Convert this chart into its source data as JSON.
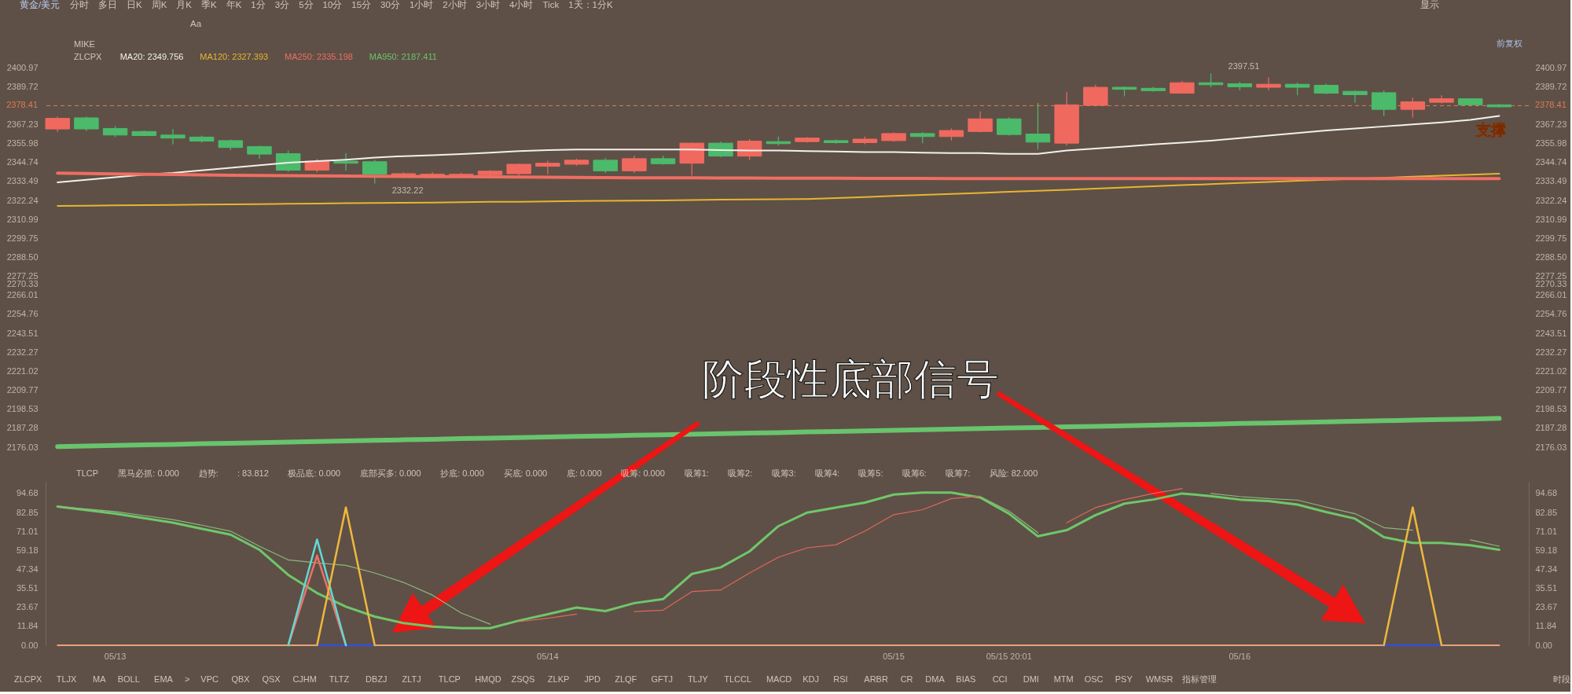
{
  "chart_data": [
    {
      "type": "other",
      "title": "黄金/美元",
      "annotations": [
        "分时　多日　日K　周K　月K　季K　年K　1分　3分　5分　10分　15分　30分　1小时　2小时　3小时　4小时　Tick　1天：1分K",
        "Aa",
        "显示"
      ]
    },
    {
      "type": "candlestick",
      "legend_title": "ZLCPX",
      "legend": "top left",
      "tick_labels": "y",
      "categories": [
        null,
        null,
        null,
        null,
        null,
        null,
        null,
        null,
        null,
        null,
        null,
        null,
        null,
        null,
        null,
        null,
        null,
        null,
        null,
        null,
        null,
        null,
        null,
        null,
        null,
        null,
        null,
        null,
        null,
        null,
        null,
        null,
        null,
        null,
        null,
        null,
        null,
        null,
        null,
        null,
        null,
        null,
        null,
        null,
        null,
        null,
        null,
        null,
        null,
        null,
        null
      ],
      "ohlc": [
        [
          2364.6,
          2372.0,
          2362.8,
          2370.9
        ],
        [
          2371.2,
          2372.0,
          2363.4,
          2364.6
        ],
        [
          2364.9,
          2366.4,
          2359.8,
          2361.0
        ],
        [
          2363.1,
          2363.7,
          2360.4,
          2360.7
        ],
        [
          2361.0,
          2364.6,
          2355.4,
          2359.2
        ],
        [
          2359.8,
          2360.7,
          2356.5,
          2357.4
        ],
        [
          2357.7,
          2358.3,
          2352.1,
          2353.6
        ],
        [
          2354.2,
          2354.8,
          2347.0,
          2349.7
        ],
        [
          2350.0,
          2351.8,
          2339.2,
          2340.2
        ],
        [
          2340.2,
          2347.0,
          2338.9,
          2345.5
        ],
        [
          2345.5,
          2350.3,
          2339.8,
          2344.3
        ],
        [
          2345.2,
          2346.4,
          2332.22,
          2337.8
        ],
        [
          2337.2,
          2339.0,
          2335.4,
          2338.1
        ],
        [
          2337.2,
          2339.0,
          2335.4,
          2337.8
        ],
        [
          2337.5,
          2338.7,
          2336.6,
          2337.8
        ],
        [
          2337.5,
          2340.2,
          2337.2,
          2339.6
        ],
        [
          2338.1,
          2344.0,
          2336.9,
          2343.7
        ],
        [
          2342.5,
          2345.8,
          2337.8,
          2344.3
        ],
        [
          2343.7,
          2347.0,
          2342.8,
          2346.1
        ],
        [
          2346.1,
          2347.3,
          2338.4,
          2339.8
        ],
        [
          2339.8,
          2348.8,
          2338.6,
          2347.0
        ],
        [
          2347.0,
          2348.8,
          2343.4,
          2344.0
        ],
        [
          2344.3,
          2356.5,
          2336.9,
          2356.2
        ],
        [
          2356.2,
          2357.1,
          2347.9,
          2348.5
        ],
        [
          2348.5,
          2358.6,
          2346.1,
          2357.4
        ],
        [
          2357.1,
          2360.1,
          2354.8,
          2355.9
        ],
        [
          2357.1,
          2359.8,
          2356.5,
          2359.2
        ],
        [
          2357.7,
          2358.3,
          2355.9,
          2356.5
        ],
        [
          2356.5,
          2360.1,
          2355.6,
          2358.6
        ],
        [
          2357.7,
          2362.5,
          2357.1,
          2361.9
        ],
        [
          2361.9,
          2362.8,
          2356.2,
          2360.1
        ],
        [
          2360.1,
          2364.9,
          2357.7,
          2363.7
        ],
        [
          2363.1,
          2375.0,
          2362.5,
          2370.6
        ],
        [
          2370.6,
          2371.5,
          2360.7,
          2361.3
        ],
        [
          2361.6,
          2380.1,
          2352.4,
          2356.8
        ],
        [
          2356.2,
          2386.7,
          2354.7,
          2378.9
        ],
        [
          2378.6,
          2390.8,
          2378.0,
          2389.3
        ],
        [
          2389.3,
          2389.9,
          2384.0,
          2388.1
        ],
        [
          2388.7,
          2389.6,
          2386.7,
          2387.3
        ],
        [
          2385.8,
          2393.2,
          2385.5,
          2392.0
        ],
        [
          2392.0,
          2397.51,
          2389.3,
          2390.8
        ],
        [
          2391.4,
          2392.6,
          2387.5,
          2389.6
        ],
        [
          2389.3,
          2395.3,
          2387.5,
          2391.1
        ],
        [
          2391.1,
          2392.0,
          2384.6,
          2389.3
        ],
        [
          2390.5,
          2391.4,
          2385.2,
          2385.8
        ],
        [
          2386.9,
          2387.5,
          2380.1,
          2384.9
        ],
        [
          2386.1,
          2387.5,
          2372.3,
          2376.2
        ],
        [
          2376.2,
          2383.1,
          2371.4,
          2380.7
        ],
        [
          2380.4,
          2384.6,
          2379.8,
          2382.5
        ],
        [
          2382.5,
          2382.8,
          2378.6,
          2378.9
        ],
        [
          2378.9,
          2379.5,
          2377.4,
          2377.7
        ]
      ],
      "colors": [
        "#f0695f",
        "#4cba6b",
        "#4cba6b",
        "#4cba6b",
        "#4cba6b",
        "#4cba6b",
        "#4cba6b",
        "#4cba6b",
        "#4cba6b",
        "#f0695f",
        "#4cba6b",
        "#4cba6b",
        "#f0695f",
        "#f0695f",
        "#f0695f",
        "#f0695f",
        "#f0695f",
        "#f0695f",
        "#f0695f",
        "#4cba6b",
        "#f0695f",
        "#4cba6b",
        "#f0695f",
        "#4cba6b",
        "#f0695f",
        "#4cba6b",
        "#f0695f",
        "#4cba6b",
        "#f0695f",
        "#f0695f",
        "#4cba6b",
        "#f0695f",
        "#f0695f",
        "#4cba6b",
        "#4cba6b",
        "#f0695f",
        "#f0695f",
        "#4cba6b",
        "#4cba6b",
        "#f0695f",
        "#4cba6b",
        "#4cba6b",
        "#f0695f",
        "#4cba6b",
        "#4cba6b",
        "#4cba6b",
        "#4cba6b",
        "#f0695f",
        "#f0695f",
        "#4cba6b",
        "#4cba6b"
      ],
      "value_labels": [
        null,
        null,
        null,
        null,
        null,
        null,
        null,
        null,
        null,
        null,
        null,
        "2332.22",
        null,
        null,
        null,
        null,
        null,
        null,
        null,
        null,
        null,
        null,
        null,
        null,
        null,
        null,
        null,
        null,
        null,
        null,
        null,
        null,
        null,
        null,
        null,
        null,
        null,
        null,
        null,
        null,
        "2397.51",
        null,
        null,
        null,
        null,
        null,
        null,
        null,
        null,
        null,
        null
      ],
      "series": [
        {
          "name": "MA20: 2349.756",
          "type": "line",
          "color": "#f2f0ec",
          "values": [
            2333.0,
            2334.5,
            2336.0,
            2337.5,
            2338.6,
            2340.1,
            2341.6,
            2343.1,
            2344.6,
            2345.5,
            2346.4,
            2347.6,
            2348.5,
            2349.1,
            2349.7,
            2350.6,
            2351.5,
            2352.1,
            2352.4,
            2352.4,
            2352.4,
            2352.4,
            2352.4,
            2352.1,
            2351.8,
            2351.8,
            2351.5,
            2351.2,
            2350.9,
            2350.9,
            2350.6,
            2350.3,
            2350.3,
            2349.8,
            2349.9,
            2351.8,
            2353.0,
            2354.2,
            2355.4,
            2356.5,
            2357.7,
            2359.2,
            2360.7,
            2362.2,
            2363.7,
            2364.9,
            2366.1,
            2367.3,
            2368.5,
            2370.0,
            2372.3
          ]
        },
        {
          "name": "MA120: 2327.393",
          "type": "line",
          "color": "#e7b531",
          "values": [
            2319.0,
            2319.1,
            2319.3,
            2319.5,
            2319.6,
            2319.8,
            2319.9,
            2320.1,
            2320.3,
            2320.4,
            2320.6,
            2320.7,
            2320.9,
            2321.0,
            2321.2,
            2321.4,
            2321.5,
            2321.7,
            2321.9,
            2322.0,
            2322.2,
            2322.3,
            2322.5,
            2322.7,
            2322.8,
            2323.0,
            2323.1,
            2323.7,
            2324.3,
            2324.9,
            2325.5,
            2326.1,
            2326.7,
            2327.4,
            2328.0,
            2328.6,
            2329.3,
            2330.0,
            2330.6,
            2331.3,
            2331.9,
            2332.6,
            2333.2,
            2333.9,
            2334.5,
            2335.1,
            2335.7,
            2336.3,
            2336.9,
            2337.5,
            2338.1
          ]
        },
        {
          "name": "MA250: 2335.198",
          "type": "line",
          "color": "#ef6e62",
          "values": [
            2338.4,
            2338.2,
            2338.0,
            2337.8,
            2337.6,
            2337.4,
            2337.2,
            2337.0,
            2336.9,
            2336.8,
            2336.7,
            2336.6,
            2336.5,
            2336.4,
            2336.3,
            2336.2,
            2336.1,
            2336.0,
            2335.9,
            2335.8,
            2335.7,
            2335.6,
            2335.6,
            2335.5,
            2335.5,
            2335.4,
            2335.4,
            2335.4,
            2335.3,
            2335.3,
            2335.3,
            2335.2,
            2335.2,
            2335.2,
            2335.2,
            2335.2,
            2335.2,
            2335.2,
            2335.2,
            2335.2,
            2335.2,
            2335.2,
            2335.2,
            2335.2,
            2335.2,
            2335.2,
            2335.2,
            2335.2,
            2335.2,
            2335.2,
            2335.2
          ]
        },
        {
          "name": "MA950: 2187.411",
          "type": "line",
          "color": "#69c46d",
          "values": [
            2176.4,
            2176.7,
            2177.1,
            2177.4,
            2177.7,
            2178.1,
            2178.4,
            2178.7,
            2179.1,
            2179.4,
            2179.7,
            2180.1,
            2180.4,
            2180.7,
            2181.1,
            2181.4,
            2181.7,
            2182.1,
            2182.4,
            2182.7,
            2183.1,
            2183.4,
            2183.7,
            2184.1,
            2184.4,
            2184.7,
            2185.1,
            2185.4,
            2185.7,
            2186.1,
            2186.4,
            2186.7,
            2187.1,
            2187.4,
            2187.7,
            2188.1,
            2188.4,
            2188.7,
            2189.1,
            2189.4,
            2189.7,
            2190.1,
            2190.4,
            2190.7,
            2191.1,
            2191.4,
            2191.7,
            2192.1,
            2192.4,
            2192.7,
            2193.1
          ]
        }
      ],
      "ylim": [
        2176.03,
        2400.97
      ],
      "yticks": [
        2400.97,
        2389.72,
        2367.23,
        2355.98,
        2344.74,
        2333.49,
        2322.24,
        2310.99,
        2299.75,
        {
          "value": 2288.5,
          "label": "2288.50"
        },
        2277.25,
        2270.33,
        2266.01,
        2254.76,
        2243.51,
        2232.27,
        2221.02,
        2209.77,
        2198.53,
        2187.28,
        2176.03
      ],
      "y2lim": [
        2176.03,
        2400.97
      ],
      "y2ticks": [
        2400.97,
        2389.72,
        2367.23,
        2355.98,
        2344.74,
        2333.49,
        2322.24,
        2310.99,
        2299.75,
        {
          "value": 2288.5,
          "label": "2288.50"
        },
        2277.25,
        2270.33,
        2266.01,
        2254.76,
        2243.51,
        2232.27,
        2221.02,
        2209.77,
        2198.53,
        2187.28,
        2176.03
      ],
      "ref_lines": [
        {
          "axis": "y",
          "value": 2378.41,
          "label": "2378.41",
          "color": "#dc7b55",
          "line_style": "dashed"
        }
      ],
      "annotations": [
        "MIKE",
        "前复权",
        "支撑"
      ]
    },
    {
      "type": "line",
      "title": "阶段性底部信号",
      "categories": [
        null,
        null,
        "05/13",
        null,
        null,
        null,
        null,
        null,
        null,
        null,
        null,
        null,
        null,
        null,
        null,
        null,
        null,
        "05/14",
        null,
        null,
        null,
        null,
        null,
        null,
        null,
        null,
        null,
        null,
        null,
        "05/15",
        null,
        null,
        null,
        "05/15 20:01",
        null,
        null,
        null,
        null,
        null,
        null,
        null,
        "05/16",
        null,
        null,
        null,
        null,
        null,
        null,
        null,
        null,
        null
      ],
      "series": [
        {
          "color": "#e8a37a",
          "values": [
            0,
            0,
            0,
            0,
            0,
            0,
            0,
            0,
            0,
            0,
            0,
            0,
            0,
            0,
            0,
            0,
            0,
            0,
            0,
            0,
            0,
            0,
            0,
            0,
            0,
            0,
            0,
            0,
            0,
            0,
            0,
            0,
            0,
            0,
            0,
            0,
            0,
            0,
            0,
            0,
            0,
            0,
            0,
            0,
            0,
            0,
            0,
            0,
            0,
            0,
            0
          ]
        },
        {
          "color": "#3350d8",
          "values": [
            null,
            null,
            null,
            null,
            null,
            null,
            null,
            null,
            null,
            0,
            0,
            0,
            null,
            null,
            null,
            null,
            null,
            null,
            null,
            null,
            null,
            null,
            null,
            null,
            null,
            null,
            null,
            null,
            null,
            null,
            null,
            null,
            null,
            null,
            null,
            null,
            null,
            null,
            null,
            null,
            null,
            null,
            null,
            null,
            null,
            null,
            0,
            0,
            0,
            null,
            null
          ]
        },
        {
          "color": "#6fc76a",
          "values": [
            86.5,
            84.3,
            82.1,
            79.3,
            76.5,
            72.7,
            69.0,
            59.6,
            43.9,
            32.6,
            24.1,
            17.9,
            13.8,
            11.6,
            10.7,
            10.7,
            15.4,
            19.4,
            23.5,
            21.3,
            26.3,
            28.8,
            44.5,
            48.6,
            58.6,
            74.3,
            82.8,
            85.9,
            89.0,
            94.0,
            95.3,
            95.3,
            92.2,
            82.1,
            68.0,
            71.8,
            81.2,
            88.4,
            90.9,
            94.7,
            93.1,
            90.9,
            90.0,
            87.8,
            83.1,
            79.0,
            67.4,
            63.9,
            63.9,
            62.4,
            59.6
          ]
        },
        {
          "color": "#8cb87e",
          "values": [
            86.5,
            85.0,
            83.4,
            80.9,
            78.4,
            74.9,
            71.2,
            61.8,
            53.3,
            51.4,
            49.8,
            45.1,
            39.2,
            31.3,
            20.1,
            13.2,
            null,
            null,
            null,
            null,
            null,
            null,
            null,
            null,
            null,
            null,
            null,
            null,
            null,
            null,
            null,
            null,
            92.8,
            83.7,
            70.2,
            null,
            null,
            null,
            null,
            null,
            94.7,
            92.8,
            91.5,
            90.6,
            86.2,
            82.1,
            73.4,
            71.8,
            null,
            65.8,
            61.8
          ]
        },
        {
          "color": "#e0675e",
          "values": [
            null,
            null,
            null,
            null,
            null,
            null,
            null,
            null,
            null,
            null,
            null,
            null,
            null,
            null,
            null,
            null,
            14.7,
            16.9,
            19.4,
            null,
            21.0,
            21.9,
            33.5,
            34.5,
            45.1,
            54.9,
            60.8,
            62.7,
            71.2,
            81.5,
            84.6,
            91.5,
            93.1,
            null,
            null,
            76.5,
            85.9,
            90.9,
            94.7,
            97.8,
            null,
            null,
            null,
            null,
            null,
            null,
            null,
            null,
            null,
            null,
            null
          ]
        },
        {
          "color": "#ee7068",
          "values": [
            null,
            null,
            null,
            null,
            null,
            null,
            null,
            null,
            0,
            56,
            0,
            null,
            null,
            null,
            null,
            null,
            null,
            null,
            null,
            null,
            null,
            null,
            null,
            null,
            null,
            null,
            null,
            null,
            null,
            null,
            null,
            null,
            null,
            null,
            null,
            null,
            null,
            null,
            null,
            null,
            null,
            null,
            null,
            null,
            null,
            null,
            null,
            null,
            null,
            null,
            null
          ]
        },
        {
          "color": "#62d8d4",
          "values": [
            null,
            null,
            null,
            null,
            null,
            null,
            null,
            null,
            0,
            66,
            0,
            null,
            null,
            null,
            null,
            null,
            null,
            null,
            null,
            null,
            null,
            null,
            null,
            null,
            null,
            null,
            null,
            null,
            null,
            null,
            null,
            null,
            null,
            null,
            null,
            null,
            null,
            null,
            null,
            null,
            null,
            null,
            null,
            null,
            null,
            null,
            null,
            null,
            null,
            null,
            null
          ]
        },
        {
          "color": "#eeb83e",
          "values": [
            null,
            null,
            null,
            null,
            null,
            null,
            null,
            null,
            null,
            0,
            86,
            0,
            null,
            null,
            null,
            null,
            null,
            null,
            null,
            null,
            null,
            null,
            null,
            null,
            null,
            null,
            null,
            null,
            null,
            null,
            null,
            null,
            null,
            null,
            null,
            null,
            null,
            null,
            null,
            null,
            null,
            null,
            null,
            null,
            null,
            null,
            0,
            86,
            0,
            null,
            null
          ]
        }
      ],
      "ylim": [
        0,
        102
      ],
      "yticks": [
        {
          "value": 0,
          "label": "0.00"
        },
        11.84,
        23.67,
        35.51,
        47.34,
        59.18,
        71.01,
        82.85,
        94.68
      ],
      "y2lim": [
        0,
        102
      ],
      "y2ticks": [
        {
          "value": 0,
          "label": "0.00"
        },
        11.84,
        23.67,
        35.51,
        47.34,
        59.18,
        71.01,
        82.85,
        94.68
      ],
      "annotations": [
        "TLCP",
        "黑马必抓: 0.000",
        "趋势:",
        ": 83.812",
        "极品底: 0.000",
        "底部买多: 0.000",
        "抄底: 0.000",
        "买底: 0.000",
        "底: 0.000",
        "吸筹: 0.000",
        "吸筹1:",
        "吸筹2:",
        "吸筹3:",
        "吸筹4:",
        "吸筹5:",
        "吸筹6:",
        "吸筹7:",
        "风险: 82.000"
      ]
    },
    {
      "type": "other",
      "annotations": [
        "ZLCPX",
        "TLJX",
        "MA",
        "BOLL",
        "EMA",
        ">",
        "VPC",
        "QBX",
        "QSX",
        "CJHM",
        "TLTZ",
        "DBZJ",
        "ZLTJ",
        "TLCP",
        "HMQD",
        "ZSQS",
        "ZLKP",
        "JPD",
        "ZLQF",
        "GFTJ",
        "TLJY",
        "TLCCL",
        "MACD",
        "KDJ",
        "RSI",
        "ARBR",
        "CR",
        "DMA",
        "BIAS",
        "CCI",
        "DMI",
        "MTM",
        "OSC",
        "PSY",
        "WMSR",
        "指标管理",
        "时段"
      ]
    }
  ]
}
